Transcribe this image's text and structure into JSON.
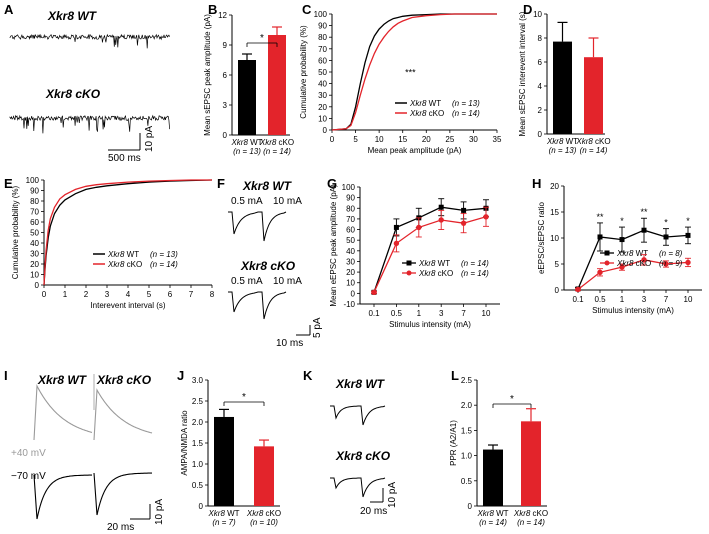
{
  "colors": {
    "wt": "#000000",
    "cko": "#e3242b",
    "ckoLight": "#f26b6b",
    "grey": "#9a9a9a"
  },
  "panelA": {
    "letter": "A",
    "wt_label": "Xkr8 WT",
    "cko_label": "Xkr8 cKO",
    "scale_x": "500 ms",
    "scale_y": "10 pA"
  },
  "chart_data": [
    {
      "panel": "B",
      "type": "bar",
      "ylabel": "Mean sEPSC peak amplitude (pA)",
      "ylim": [
        0,
        12
      ],
      "yticks": [
        0,
        3,
        6,
        9,
        12
      ],
      "categories": [
        "Xkr8 WT",
        "Xkr8 cKO"
      ],
      "n_labels": [
        "(n = 13)",
        "(n = 14)"
      ],
      "values": [
        7.5,
        10.0
      ],
      "errors": [
        0.6,
        0.8
      ],
      "significance": "*"
    },
    {
      "panel": "C",
      "type": "line",
      "ylabel": "Cumulative probability (%)",
      "xlabel": "Mean peak amplitude (pA)",
      "xlim": [
        0,
        35
      ],
      "ylim": [
        0,
        100
      ],
      "xticks": [
        0,
        5,
        10,
        15,
        20,
        25,
        30,
        35
      ],
      "yticks": [
        0,
        10,
        20,
        30,
        40,
        50,
        60,
        70,
        80,
        90,
        100
      ],
      "annotation": "***",
      "series": [
        {
          "name": "Xkr8 WT",
          "n_label": "(n = 13)",
          "color": "#000000",
          "x": [
            0,
            3,
            4,
            5,
            6,
            7,
            8,
            9,
            10,
            11,
            12,
            13,
            14,
            15,
            17,
            20,
            23,
            26,
            30,
            35
          ],
          "y": [
            0,
            1,
            5,
            20,
            40,
            58,
            72,
            81,
            87,
            91,
            94,
            96,
            97,
            98,
            99,
            99.5,
            100,
            100,
            100,
            100
          ]
        },
        {
          "name": "Xkr8 cKO",
          "n_label": "(n = 14)",
          "color": "#e3242b",
          "x": [
            0,
            3,
            4,
            5,
            6,
            7,
            8,
            9,
            10,
            11,
            12,
            13,
            14,
            15,
            17,
            20,
            23,
            26,
            30,
            35
          ],
          "y": [
            0,
            1,
            4,
            15,
            30,
            44,
            56,
            66,
            74,
            80,
            85,
            89,
            92,
            94,
            97,
            98.5,
            99.5,
            100,
            100,
            100
          ]
        }
      ]
    },
    {
      "panel": "D",
      "type": "bar",
      "ylabel": "Mean sEPSC interevent interval (s)",
      "ylim": [
        0,
        10
      ],
      "yticks": [
        0,
        2,
        4,
        6,
        8,
        10
      ],
      "categories": [
        "Xkr8 WT",
        "Xkr8 cKO"
      ],
      "n_labels": [
        "(n = 13)",
        "(n = 14)"
      ],
      "values": [
        7.7,
        6.4
      ],
      "errors": [
        1.6,
        1.6
      ]
    },
    {
      "panel": "E",
      "type": "line",
      "ylabel": "Cumulative probability (%)",
      "xlabel": "Interevent  interval (s)",
      "xlim": [
        0,
        8
      ],
      "ylim": [
        0,
        100
      ],
      "xticks": [
        0,
        1,
        2,
        3,
        4,
        5,
        6,
        7,
        8
      ],
      "yticks": [
        0,
        10,
        20,
        30,
        40,
        50,
        60,
        70,
        80,
        90,
        100
      ],
      "series": [
        {
          "name": "Xkr8 WT",
          "n_label": "(n = 13)",
          "color": "#000000",
          "x": [
            0,
            0.05,
            0.1,
            0.2,
            0.3,
            0.5,
            0.75,
            1,
            1.5,
            2,
            2.5,
            3,
            4,
            5,
            6,
            7,
            8
          ],
          "y": [
            0,
            15,
            28,
            45,
            56,
            68,
            76,
            81,
            87,
            91,
            93,
            94.5,
            96.5,
            98,
            99,
            99.5,
            100
          ]
        },
        {
          "name": "Xkr8 cKO",
          "n_label": "(n = 14)",
          "color": "#e3242b",
          "x": [
            0,
            0.05,
            0.1,
            0.2,
            0.3,
            0.5,
            0.75,
            1,
            1.5,
            2,
            2.5,
            3,
            4,
            5,
            6,
            7,
            8
          ],
          "y": [
            0,
            18,
            33,
            52,
            63,
            74,
            82,
            86,
            91,
            94,
            95.5,
            96.5,
            98,
            99,
            99.5,
            100,
            100
          ]
        }
      ]
    },
    {
      "panel": "G",
      "type": "line",
      "ylabel": "Mean eEPSC peak amplitude (pA)",
      "xlabel": "Stimulus intensity (mA)",
      "categories": [
        "0.1",
        "0.5",
        "1",
        "3",
        "7",
        "10"
      ],
      "ylim": [
        -10,
        100
      ],
      "yticks": [
        -10,
        0,
        10,
        20,
        30,
        40,
        50,
        60,
        70,
        80,
        90,
        100
      ],
      "series": [
        {
          "name": "Xkr8 WT",
          "n_label": "(n = 14)",
          "color": "#000000",
          "values": [
            1,
            62,
            71,
            81,
            78,
            80
          ],
          "errors": [
            1,
            8,
            9,
            8,
            8,
            8
          ]
        },
        {
          "name": "Xkr8 cKO",
          "n_label": "(n = 14)",
          "color": "#e3242b",
          "values": [
            1,
            47,
            62,
            69,
            66,
            72
          ],
          "errors": [
            1,
            8,
            9,
            9,
            9,
            9
          ]
        }
      ]
    },
    {
      "panel": "H",
      "type": "line",
      "ylabel": "eEPSC/sEPSC ratio",
      "xlabel": "Stimulus intensity (mA)",
      "categories": [
        "0.1",
        "0.5",
        "1",
        "3",
        "7",
        "10"
      ],
      "ylim": [
        0,
        20
      ],
      "yticks": [
        0,
        5,
        10,
        15,
        20
      ],
      "significance": [
        "",
        "**",
        "*",
        "**",
        "*",
        "*"
      ],
      "series": [
        {
          "name": "Xkr8 WT",
          "n_label": "(n = 8)",
          "color": "#000000",
          "values": [
            0.2,
            10.2,
            9.7,
            11.5,
            10.2,
            10.5
          ],
          "errors": [
            0.3,
            2.7,
            2.4,
            2.3,
            1.6,
            1.6
          ]
        },
        {
          "name": "Xkr8 cKO",
          "n_label": "(n = 9)",
          "color": "#e3242b",
          "values": [
            0.1,
            3.4,
            4.4,
            5.8,
            5.0,
            5.3
          ],
          "errors": [
            0.2,
            0.7,
            0.6,
            1.0,
            0.6,
            0.8
          ]
        }
      ]
    },
    {
      "panel": "J",
      "type": "bar",
      "ylabel": "AMPA/NMDA ratio",
      "ylim": [
        0,
        3.0
      ],
      "yticks": [
        0,
        0.5,
        1.0,
        1.5,
        2.0,
        2.5,
        3.0
      ],
      "ytick_labels": [
        "0",
        "0.5",
        "1.0",
        "1.5",
        "2.0",
        "2.5",
        "3.0"
      ],
      "categories": [
        "Xkr8 WT",
        "Xkr8 cKO"
      ],
      "n_labels": [
        "(n = 7)",
        "(n = 10)"
      ],
      "values": [
        2.12,
        1.42
      ],
      "errors": [
        0.18,
        0.15
      ],
      "significance": "*"
    },
    {
      "panel": "L",
      "type": "bar",
      "ylabel": "PPR (A2/A1)",
      "ylim": [
        0,
        2.5
      ],
      "yticks": [
        0,
        0.5,
        1.0,
        1.5,
        2.0,
        2.5
      ],
      "ytick_labels": [
        "0",
        "0.5",
        "1.0",
        "1.5",
        "2.0",
        "2.5"
      ],
      "categories": [
        "Xkr8 WT",
        "Xkr8 cKO"
      ],
      "n_labels": [
        "(n = 14)",
        "(n = 14)"
      ],
      "values": [
        1.12,
        1.68
      ],
      "errors": [
        0.09,
        0.25
      ],
      "significance": "*"
    }
  ],
  "panelF": {
    "letter": "F",
    "wt_label": "Xkr8 WT",
    "cko_label": "Xkr8 cKO",
    "stim_low": "0.5 mA",
    "stim_high": "10 mA",
    "scale_x": "10 ms",
    "scale_y": "5 pA"
  },
  "panelI": {
    "letter": "I",
    "wt_label": "Xkr8 WT",
    "cko_label": "Xkr8 cKO",
    "hold_pos": "+40 mV",
    "hold_neg": "−70 mV",
    "scale_x": "20 ms",
    "scale_y": "10 pA"
  },
  "panelK": {
    "letter": "K",
    "wt_label": "Xkr8 WT",
    "cko_label": "Xkr8 cKO",
    "scale_x": "20 ms",
    "scale_y": "10 pA"
  }
}
